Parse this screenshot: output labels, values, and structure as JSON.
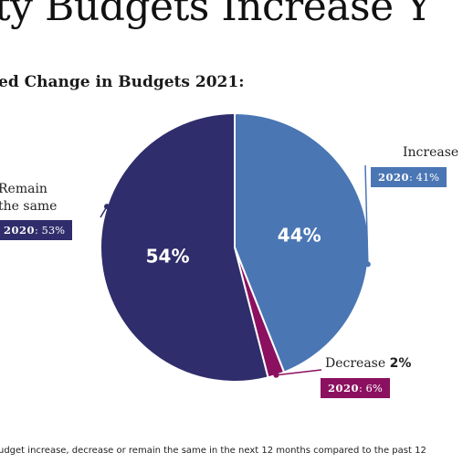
{
  "title": "ty Budgets Increase Y",
  "subtitle": "ed Change in Budgets 2021:",
  "footnote": "udget increase, decrease or remain the same in the next 12 months compared to the past 12",
  "chart_data": {
    "type": "pie",
    "title": "ed Change in Budgets 2021:",
    "slices": [
      {
        "label": "Increase",
        "value": 44,
        "display": "44%",
        "color": "#4a76b4",
        "prior_label": "2020",
        "prior_value": "41%"
      },
      {
        "label": "Decrease",
        "value": 2,
        "display": "2%",
        "color": "#8c1060",
        "prior_label": "2020",
        "prior_value": "6%"
      },
      {
        "label": "Remain the same",
        "value": 54,
        "display": "54%",
        "color": "#2f2d6b",
        "prior_label": "2020",
        "prior_value": "53%"
      }
    ],
    "label_lines": {
      "remain_line1": "Remain",
      "remain_line2": "the same",
      "decrease_word": "Decrease"
    }
  }
}
